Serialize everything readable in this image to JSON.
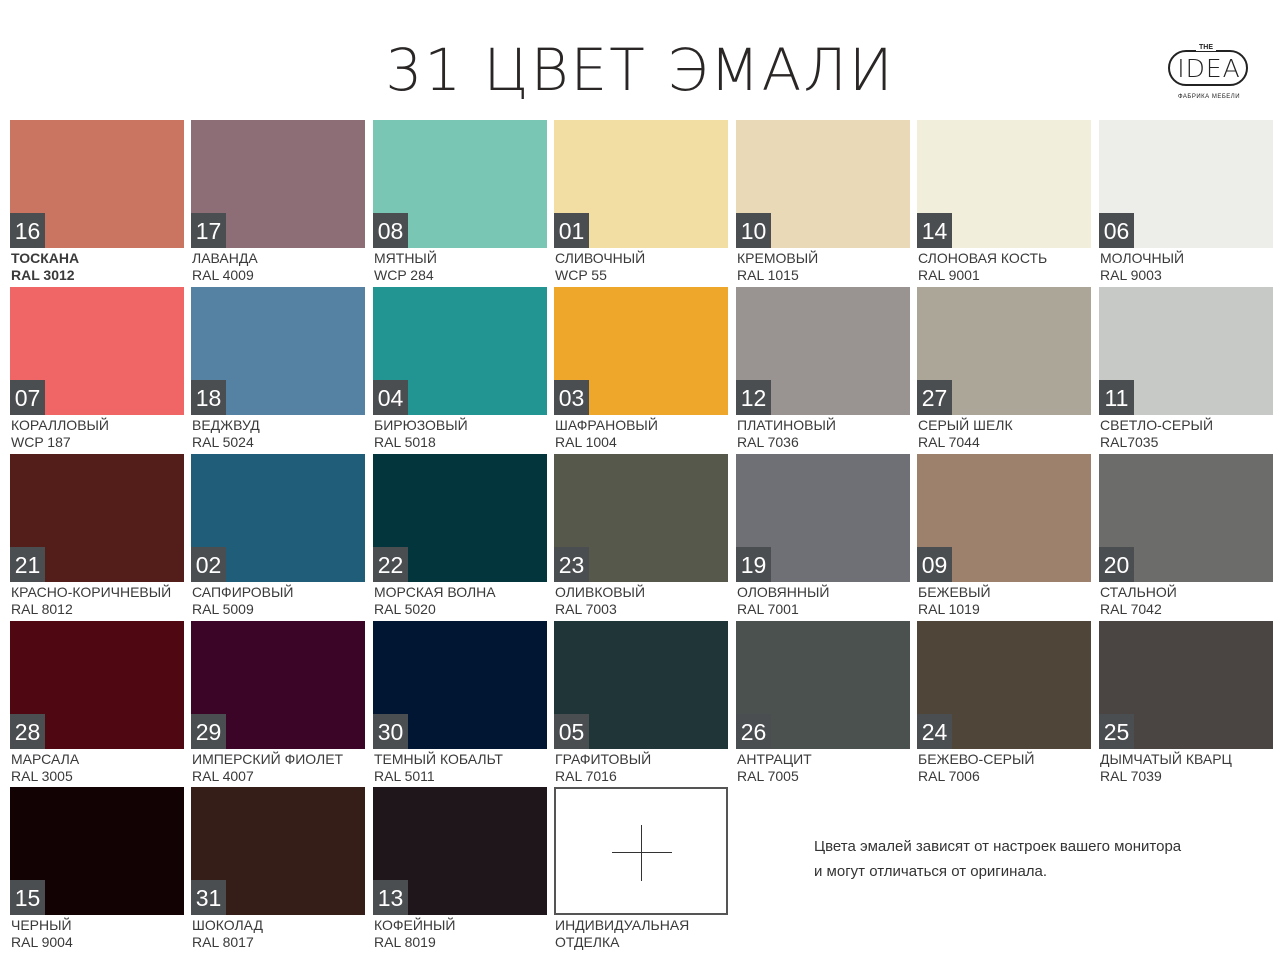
{
  "title": "31 ЦВЕТ ЭМАЛИ",
  "logo": {
    "the": "THE",
    "word": "IDEA",
    "sub": "ФАБРИКА МЕБЕЛИ"
  },
  "swatches": [
    {
      "num": "16",
      "name": "ТОСКАНА",
      "code": "RAL 3012",
      "color": "#c97562"
    },
    {
      "num": "17",
      "name": "ЛАВАНДА",
      "code": "RAL 4009",
      "color": "#8e6e76"
    },
    {
      "num": "08",
      "name": "МЯТНЫЙ",
      "code": "WCP 284",
      "color": "#7ac6b5"
    },
    {
      "num": "01",
      "name": "СЛИВОЧНЫЙ",
      "code": "WCP 55",
      "color": "#f2dea3"
    },
    {
      "num": "10",
      "name": "КРЕМОВЫЙ",
      "code": "RAL 1015",
      "color": "#e9d9b6"
    },
    {
      "num": "14",
      "name": "СЛОНОВАЯ КОСТЬ",
      "code": "RAL 9001",
      "color": "#f1eedc"
    },
    {
      "num": "06",
      "name": "МОЛОЧНЫЙ",
      "code": "RAL 9003",
      "color": "#edeeea"
    },
    {
      "num": "07",
      "name": "КОРАЛЛОВЫЙ",
      "code": "WCP 187",
      "color": "#f06667"
    },
    {
      "num": "18",
      "name": "ВЕДЖВУД",
      "code": "RAL 5024",
      "color": "#5581a3"
    },
    {
      "num": "04",
      "name": "БИРЮЗОВЫЙ",
      "code": "RAL 5018",
      "color": "#229593"
    },
    {
      "num": "03",
      "name": "ШАФРАНОВЫЙ",
      "code": "RAL 1004",
      "color": "#eea72b"
    },
    {
      "num": "12",
      "name": "ПЛАТИНОВЫЙ",
      "code": "RAL 7036",
      "color": "#999391"
    },
    {
      "num": "27",
      "name": "СЕРЫЙ ШЕЛК",
      "code": "RAL 7044",
      "color": "#aca698"
    },
    {
      "num": "11",
      "name": "СВЕТЛО-СЕРЫЙ",
      "code": "RAL7035",
      "color": "#c7c9c7"
    },
    {
      "num": "21",
      "name": "КРАСНО-КОРИЧНЕВЫЙ",
      "code": "RAL 8012",
      "color": "#531e1a"
    },
    {
      "num": "02",
      "name": "САПФИРОВЫЙ",
      "code": "RAL 5009",
      "color": "#1f5d79"
    },
    {
      "num": "22",
      "name": "МОРСКАЯ ВОЛНА",
      "code": "RAL 5020",
      "color": "#02363c"
    },
    {
      "num": "23",
      "name": "ОЛИВКОВЫЙ",
      "code": "RAL 7003",
      "color": "#55584a"
    },
    {
      "num": "19",
      "name": "ОЛОВЯННЫЙ",
      "code": "RAL 7001",
      "color": "#6f7075"
    },
    {
      "num": "09",
      "name": "БЕЖЕВЫЙ",
      "code": "RAL 1019",
      "color": "#9e816c"
    },
    {
      "num": "20",
      "name": "СТАЛЬНОЙ",
      "code": "RAL 7042",
      "color": "#6c6c6a"
    },
    {
      "num": "28",
      "name": "МАРСАЛА",
      "code": "RAL 3005",
      "color": "#4f0811"
    },
    {
      "num": "29",
      "name": "ИМПЕРСКИЙ ФИОЛЕТ",
      "code": "RAL 4007",
      "color": "#3a0526"
    },
    {
      "num": "30",
      "name": "ТЕМНЫЙ КОБАЛЬТ",
      "code": "RAL 5011",
      "color": "#011632"
    },
    {
      "num": "05",
      "name": "ГРАФИТОВЫЙ",
      "code": "RAL 7016",
      "color": "#203538"
    },
    {
      "num": "26",
      "name": "АНТРАЦИТ",
      "code": "RAL 7005",
      "color": "#4b514f"
    },
    {
      "num": "24",
      "name": "БЕЖЕВО-СЕРЫЙ",
      "code": "RAL 7006",
      "color": "#4f4538"
    },
    {
      "num": "25",
      "name": "ДЫМЧАТЫЙ КВАРЦ",
      "code": "RAL 7039",
      "color": "#4a4442"
    },
    {
      "num": "15",
      "name": "ЧЕРНЫЙ",
      "code": "RAL 9004",
      "color": "#130203"
    },
    {
      "num": "31",
      "name": "ШОКОЛАД",
      "code": "RAL 8017",
      "color": "#351d18"
    },
    {
      "num": "13",
      "name": "КОФЕЙНЫЙ",
      "code": "RAL 8019",
      "color": "#1e161b"
    }
  ],
  "custom": {
    "line1": "ИНДИВИДУАЛЬНАЯ",
    "line2": "ОТДЕЛКА"
  },
  "note": {
    "line1": "Цвета эмалей зависят от настроек  вашего монитора",
    "line2": "и могут отличаться  от оригинала."
  }
}
